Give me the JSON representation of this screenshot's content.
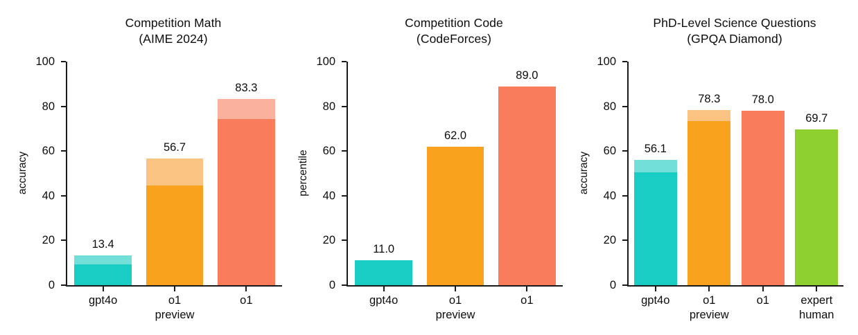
{
  "figure": {
    "background": "#ffffff",
    "text_color": "#0d0d0d",
    "axis_color": "#1a1a1a"
  },
  "colors": {
    "teal": "#19CDC4",
    "teal_light": "#72DFD8",
    "orange": "#F9A21E",
    "orange_light": "#FAC382",
    "coral": "#FA7D5B",
    "coral_light": "#FBB29D",
    "green": "#8ED030"
  },
  "chart_data": [
    {
      "type": "bar",
      "title_line1": "Competition Math",
      "title_line2": "(AIME 2024)",
      "ylabel": "accuracy",
      "ylim": [
        0,
        100
      ],
      "yticks": [
        0,
        20,
        40,
        60,
        80,
        100
      ],
      "grid": false,
      "legend": "none",
      "bar_width_frac": 0.8,
      "bars": [
        {
          "category_lines": [
            "gpt4o"
          ],
          "solid": 9.3,
          "total": 13.4,
          "value_label": "13.4",
          "color": "teal",
          "cap_color": "teal_light"
        },
        {
          "category_lines": [
            "o1",
            "preview"
          ],
          "solid": 44.6,
          "total": 56.7,
          "value_label": "56.7",
          "color": "orange",
          "cap_color": "orange_light"
        },
        {
          "category_lines": [
            "o1"
          ],
          "solid": 74.4,
          "total": 83.3,
          "value_label": "83.3",
          "color": "coral",
          "cap_color": "coral_light"
        }
      ]
    },
    {
      "type": "bar",
      "title_line1": "Competition Code",
      "title_line2": "(CodeForces)",
      "ylabel": "percentile",
      "ylim": [
        0,
        100
      ],
      "yticks": [
        0,
        20,
        40,
        60,
        80,
        100
      ],
      "grid": false,
      "legend": "none",
      "bar_width_frac": 0.8,
      "bars": [
        {
          "category_lines": [
            "gpt4o"
          ],
          "solid": 11.0,
          "total": 11.0,
          "value_label": "11.0",
          "color": "teal",
          "cap_color": null
        },
        {
          "category_lines": [
            "o1",
            "preview"
          ],
          "solid": 62.0,
          "total": 62.0,
          "value_label": "62.0",
          "color": "orange",
          "cap_color": null
        },
        {
          "category_lines": [
            "o1"
          ],
          "solid": 89.0,
          "total": 89.0,
          "value_label": "89.0",
          "color": "coral",
          "cap_color": null
        }
      ]
    },
    {
      "type": "bar",
      "title_line1": "PhD-Level Science Questions",
      "title_line2": "(GPQA Diamond)",
      "ylabel": "accuracy",
      "ylim": [
        0,
        100
      ],
      "yticks": [
        0,
        20,
        40,
        60,
        80,
        100
      ],
      "grid": false,
      "legend": "none",
      "bar_width_frac": 0.8,
      "bars": [
        {
          "category_lines": [
            "gpt4o"
          ],
          "solid": 50.6,
          "total": 56.1,
          "value_label": "56.1",
          "color": "teal",
          "cap_color": "teal_light"
        },
        {
          "category_lines": [
            "o1",
            "preview"
          ],
          "solid": 73.3,
          "total": 78.3,
          "value_label": "78.3",
          "color": "orange",
          "cap_color": "orange_light"
        },
        {
          "category_lines": [
            "o1"
          ],
          "solid": 78.0,
          "total": 78.0,
          "value_label": "78.0",
          "color": "coral",
          "cap_color": null
        },
        {
          "category_lines": [
            "expert",
            "human"
          ],
          "solid": 69.7,
          "total": 69.7,
          "value_label": "69.7",
          "color": "green",
          "cap_color": null
        }
      ]
    }
  ]
}
